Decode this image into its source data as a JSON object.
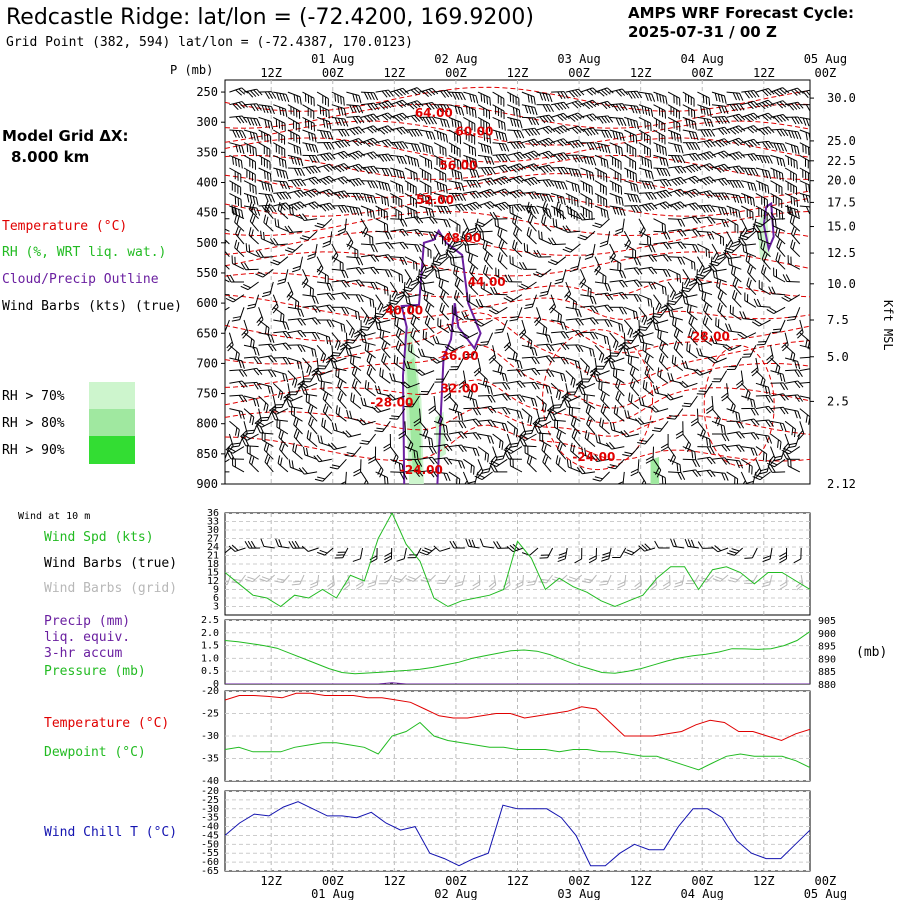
{
  "header": {
    "title": "Redcastle Ridge:  lat/lon = (-72.4200, 169.9200)",
    "subtitle": "Grid Point (382, 594) lat/lon = (-72.4387, 170.0123)",
    "cycle_line1": "AMPS WRF Forecast Cycle:",
    "cycle_line2": "2025-07-31 / 00  Z",
    "grid_line1": "Model Grid ΔX:",
    "grid_line2": "8.000 km"
  },
  "legend": {
    "temperature": "Temperature (°C)",
    "rh": "RH (%, WRT liq. wat.)",
    "cloud": "Cloud/Precip Outline",
    "wind": "Wind Barbs (kts) (true)",
    "rh70": "RH > 70%",
    "rh80": "RH > 80%",
    "rh90": "RH > 90%"
  },
  "colors": {
    "temperature": "#e00000",
    "cloud": "#6a1fa0",
    "wind_speed": "#22bb22",
    "wind_grid": "#b8b8b8",
    "windchill": "#1414b0",
    "rh70": "#cdf5cd",
    "rh80": "#a0e8a0",
    "rh90": "#33dd33"
  },
  "time_axis": {
    "hour_labels": [
      "12Z",
      "00Z",
      "12Z",
      "00Z",
      "12Z",
      "00Z",
      "12Z",
      "00Z",
      "12Z",
      "00Z"
    ],
    "day_labels": [
      "01 Aug",
      "02 Aug",
      "03 Aug",
      "04 Aug",
      "05 Aug"
    ]
  },
  "chart_data": [
    {
      "type": "line",
      "title": "",
      "xlabel": "",
      "ylabel": "P (mb)",
      "ylabel_right": "Kft MSL",
      "y_ticks": [
        250,
        300,
        350,
        400,
        450,
        500,
        550,
        600,
        650,
        700,
        750,
        800,
        850,
        900
      ],
      "y_right_ticks": [
        "30.0",
        "25.0",
        "22.5",
        "20.0",
        "17.5",
        "15.0",
        "12.5",
        "10.0",
        "7.5",
        "5.0",
        "2.5"
      ],
      "y_right_ticks_p": [
        260,
        331,
        364,
        397,
        433,
        473,
        517,
        568,
        628,
        689,
        763,
        836,
        895
      ],
      "y_right_surface": "2.12",
      "contour_labels": [
        {
          "text": "64.00",
          "day": 1.82,
          "p": 285
        },
        {
          "text": "60.00",
          "day": 2.15,
          "p": 315
        },
        {
          "text": "56.00",
          "day": 2.02,
          "p": 372
        },
        {
          "text": "52.00",
          "day": 1.83,
          "p": 429
        },
        {
          "text": "48.00",
          "day": 2.05,
          "p": 492
        },
        {
          "text": "44.00",
          "day": 2.25,
          "p": 565
        },
        {
          "text": "40.00",
          "day": 1.58,
          "p": 612
        },
        {
          "text": "36.00",
          "day": 2.03,
          "p": 688
        },
        {
          "text": "32.00",
          "day": 2.03,
          "p": 742
        },
        {
          "text": "-28.00",
          "day": 1.48,
          "p": 765
        },
        {
          "text": "-28.00",
          "day": 4.05,
          "p": 655
        },
        {
          "text": "-24.00",
          "day": 1.72,
          "p": 877
        },
        {
          "text": "-24.00",
          "day": 3.12,
          "p": 855
        }
      ]
    },
    {
      "type": "line",
      "title": "Wind at 10 m",
      "series": [
        {
          "name": "Wind Spd (kts)",
          "values": [
            15,
            11,
            7,
            6,
            3,
            7,
            6,
            9,
            6,
            14,
            12,
            27,
            36,
            25,
            19,
            6,
            3,
            5,
            6,
            7,
            9,
            26,
            20,
            9,
            13,
            10,
            8,
            5,
            3,
            5,
            7,
            13,
            17,
            17,
            9,
            16,
            17,
            15,
            11,
            15,
            15,
            12,
            9
          ]
        }
      ],
      "legend_extra": [
        "Wind Barbs (true)",
        "Wind Barbs (grid)"
      ],
      "y_ticks": [
        3,
        6,
        9,
        12,
        15,
        18,
        21,
        24,
        27,
        30,
        33,
        36
      ],
      "ylim": [
        0,
        36
      ]
    },
    {
      "type": "line",
      "title": "",
      "series": [
        {
          "name": "Precip (mm)",
          "values": [
            0,
            0,
            0,
            0,
            0,
            0,
            0,
            0,
            0,
            0,
            0,
            0,
            0.05,
            0,
            0,
            0,
            0,
            0,
            0,
            0,
            0,
            0,
            0,
            0,
            0,
            0,
            0,
            0,
            0,
            0,
            0,
            0,
            0,
            0,
            0,
            0,
            0,
            0,
            0,
            0,
            0,
            0,
            0
          ]
        },
        {
          "name": "Pressure (mb)",
          "values": [
            897,
            896.5,
            895.8,
            895,
            894,
            892,
            890,
            888,
            886,
            884.5,
            884,
            884.3,
            884.6,
            885,
            885.3,
            885.8,
            886.5,
            887.5,
            888.5,
            890,
            891,
            892,
            893,
            893.3,
            892.8,
            891.5,
            889.5,
            887.5,
            886,
            884.5,
            884.2,
            885,
            886,
            887.5,
            889,
            890.2,
            891,
            891.6,
            892.5,
            893.8,
            893.7,
            893.5,
            893.8,
            895,
            897,
            900.5
          ]
        }
      ],
      "legend_lines": [
        "Precip (mm)",
        "liq. equiv.",
        "3-hr accum",
        "Pressure (mb)"
      ],
      "y_ticks": [
        0,
        0.5,
        1.0,
        1.5,
        2.0,
        2.5
      ],
      "y_ticks_text": [
        "0",
        "0.5",
        "1.0",
        "1.5",
        "2.0",
        "2.5"
      ],
      "ylim": [
        0,
        2.5
      ],
      "y_right_ticks": [
        880,
        885,
        890,
        895,
        900,
        905
      ],
      "ylim_right": [
        880,
        905
      ],
      "ylabel_right": "(mb)"
    },
    {
      "type": "line",
      "title": "",
      "series": [
        {
          "name": "Temperature (°C)",
          "values": [
            -22,
            -21,
            -21,
            -21.2,
            -21.5,
            -20.5,
            -20.5,
            -21,
            -21,
            -21,
            -21.5,
            -21.5,
            -22,
            -22.5,
            -24,
            -25.5,
            -26,
            -26,
            -25.5,
            -25,
            -25,
            -26,
            -25.5,
            -25,
            -24.5,
            -23.5,
            -24,
            -27,
            -30,
            -30,
            -30,
            -29.5,
            -29,
            -27.5,
            -26.5,
            -27,
            -29,
            -29,
            -30,
            -31,
            -29.5,
            -28.5
          ]
        },
        {
          "name": "Dewpoint (°C)",
          "values": [
            -33,
            -32.5,
            -33.5,
            -33.5,
            -33.5,
            -32.5,
            -32,
            -31.5,
            -31.5,
            -32,
            -32.5,
            -34,
            -30,
            -29,
            -27,
            -30,
            -31,
            -31.5,
            -32,
            -32.5,
            -32.5,
            -33,
            -33,
            -33,
            -33.5,
            -33,
            -33,
            -33.5,
            -33.5,
            -34,
            -34.5,
            -34.5,
            -35.5,
            -36.5,
            -37.5,
            -36,
            -34.5,
            -34,
            -34.5,
            -34.5,
            -34.5,
            -35.5,
            -37
          ]
        }
      ],
      "y_ticks": [
        -40,
        -35,
        -30,
        -25,
        -20
      ],
      "ylim": [
        -40,
        -20
      ]
    },
    {
      "type": "line",
      "title": "",
      "series": [
        {
          "name": "Wind Chill T (°C)",
          "values": [
            -45,
            -38,
            -33,
            -34,
            -29,
            -26,
            -30,
            -34,
            -34,
            -35,
            -32,
            -38,
            -42,
            -40,
            -55,
            -58,
            -62,
            -58,
            -55,
            -28,
            -30,
            -30,
            -30,
            -35,
            -45,
            -62,
            -62,
            -55,
            -50,
            -53,
            -53,
            -40,
            -30,
            -30,
            -35,
            -48,
            -55,
            -58,
            -58,
            -50,
            -42
          ]
        }
      ],
      "y_ticks": [
        -65,
        -60,
        -55,
        -50,
        -45,
        -40,
        -35,
        -30,
        -25,
        -20
      ],
      "ylim": [
        -65,
        -20
      ]
    }
  ]
}
